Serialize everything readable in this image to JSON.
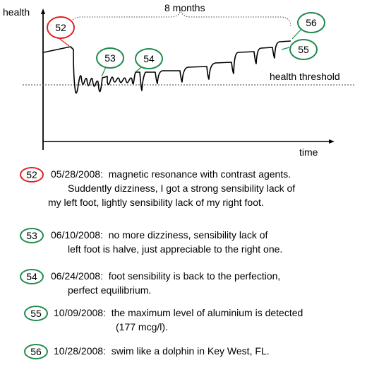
{
  "axes": {
    "y_label": "health",
    "x_label": "time"
  },
  "span_label": "8 months",
  "threshold_label": "health threshold",
  "callouts": [
    {
      "id": "52",
      "color": "#e02020"
    },
    {
      "id": "53",
      "color": "#1f8a4c"
    },
    {
      "id": "54",
      "color": "#1f8a4c"
    },
    {
      "id": "56",
      "color": "#1f8a4c"
    },
    {
      "id": "55",
      "color": "#1f8a4c"
    }
  ],
  "events": [
    {
      "id": "52",
      "color": "#e02020",
      "date": "05/28/2008:",
      "lines": [
        "magnetic resonance with contrast agents.",
        "Suddently dizziness, I got a strong sensibility lack of",
        "my left foot, lightly sensibility lack of my right foot."
      ]
    },
    {
      "id": "53",
      "color": "#1f8a4c",
      "date": "06/10/2008:",
      "lines": [
        "no more dizziness, sensibility lack of",
        "left foot is halve, just appreciable to the right one."
      ]
    },
    {
      "id": "54",
      "color": "#1f8a4c",
      "date": "06/24/2008:",
      "lines": [
        "foot sensibility is back to the perfection,",
        "perfect equilibrium."
      ]
    },
    {
      "id": "55",
      "color": "#1f8a4c",
      "date": "10/09/2008:",
      "lines": [
        "the maximum level of aluminium is detected",
        "(177 mcg/l)."
      ]
    },
    {
      "id": "56",
      "color": "#1f8a4c",
      "date": "10/28/2008:",
      "lines": [
        "swim like a dolphin in Key West,  FL."
      ]
    }
  ]
}
